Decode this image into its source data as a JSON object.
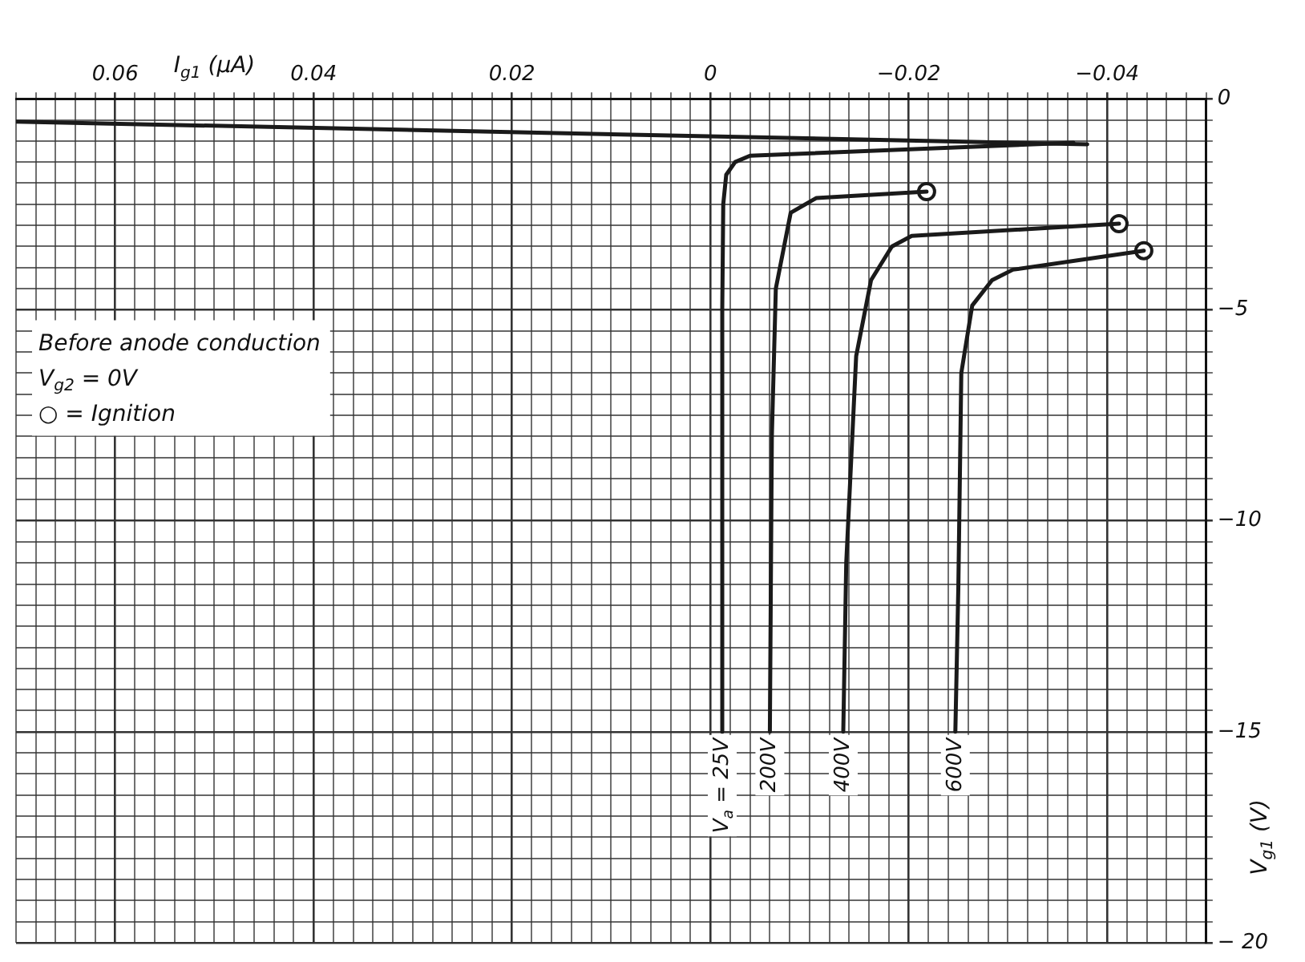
{
  "chart_data": {
    "type": "line",
    "xlabel": "I$_{g1}$ (μA)",
    "ylabel": "V$_{g1}$ (V)",
    "xlim": [
      0.07,
      -0.05
    ],
    "ylim": [
      -20,
      0
    ],
    "xticks": [
      {
        "value": 0.07,
        "label": null
      },
      {
        "value": 0.068,
        "label": null
      },
      {
        "value": 0.066,
        "label": null
      },
      {
        "value": 0.064,
        "label": null
      },
      {
        "value": 0.062,
        "label": null
      },
      0.06,
      {
        "value": 0.058,
        "label": null
      },
      {
        "value": 0.056,
        "label": null
      },
      {
        "value": 0.054,
        "label": null
      },
      {
        "value": 0.052,
        "label": null
      },
      {
        "value": 0.05,
        "label": null
      },
      {
        "value": 0.048,
        "label": null
      },
      {
        "value": 0.046,
        "label": null
      },
      {
        "value": 0.044,
        "label": null
      },
      {
        "value": 0.042,
        "label": null
      },
      0.04,
      {
        "value": 0.038,
        "label": null
      },
      {
        "value": 0.036,
        "label": null
      },
      {
        "value": 0.034,
        "label": null
      },
      {
        "value": 0.032,
        "label": null
      },
      {
        "value": 0.03,
        "label": null
      },
      {
        "value": 0.028,
        "label": null
      },
      {
        "value": 0.026,
        "label": null
      },
      {
        "value": 0.024,
        "label": null
      },
      {
        "value": 0.022,
        "label": null
      },
      0.02,
      {
        "value": 0.018,
        "label": null
      },
      {
        "value": 0.016,
        "label": null
      },
      {
        "value": 0.014,
        "label": null
      },
      {
        "value": 0.012,
        "label": null
      },
      {
        "value": 0.01,
        "label": null
      },
      {
        "value": 0.008,
        "label": null
      },
      {
        "value": 0.006,
        "label": null
      },
      {
        "value": 0.004,
        "label": null
      },
      {
        "value": 0.002,
        "label": null
      },
      0,
      {
        "value": -0.002,
        "label": null
      },
      {
        "value": -0.004,
        "label": null
      },
      {
        "value": -0.006,
        "label": null
      },
      {
        "value": -0.008,
        "label": null
      },
      {
        "value": -0.01,
        "label": null
      },
      {
        "value": -0.012,
        "label": null
      },
      {
        "value": -0.014,
        "label": null
      },
      {
        "value": -0.016,
        "label": null
      },
      {
        "value": -0.018,
        "label": null
      },
      {
        "value": -0.02,
        "label": "−0.02"
      },
      {
        "value": -0.022,
        "label": null
      },
      {
        "value": -0.024,
        "label": null
      },
      {
        "value": -0.026,
        "label": null
      },
      {
        "value": -0.028,
        "label": null
      },
      {
        "value": -0.03,
        "label": null
      },
      {
        "value": -0.032,
        "label": null
      },
      {
        "value": -0.034,
        "label": null
      },
      {
        "value": -0.036,
        "label": null
      },
      {
        "value": -0.038,
        "label": null
      },
      {
        "value": -0.04,
        "label": "−0.04"
      },
      {
        "value": -0.042,
        "label": null
      },
      {
        "value": -0.044,
        "label": null
      },
      {
        "value": -0.046,
        "label": null
      },
      {
        "value": -0.048,
        "label": null
      },
      {
        "value": -0.05,
        "label": null
      }
    ],
    "yticks": [
      0,
      {
        "value": -0.5,
        "label": null
      },
      {
        "value": -1,
        "label": null
      },
      {
        "value": -1.5,
        "label": null
      },
      {
        "value": -2,
        "label": null
      },
      {
        "value": -2.5,
        "label": null
      },
      {
        "value": -3,
        "label": null
      },
      {
        "value": -3.5,
        "label": null
      },
      {
        "value": -4,
        "label": null
      },
      {
        "value": -4.5,
        "label": null
      },
      {
        "value": -5,
        "label": "−5"
      },
      {
        "value": -5.5,
        "label": null
      },
      {
        "value": -6,
        "label": null
      },
      {
        "value": -6.5,
        "label": null
      },
      {
        "value": -7,
        "label": null
      },
      {
        "value": -7.5,
        "label": null
      },
      {
        "value": -8,
        "label": null
      },
      {
        "value": -8.5,
        "label": null
      },
      {
        "value": -9,
        "label": null
      },
      {
        "value": -9.5,
        "label": null
      },
      {
        "value": -10,
        "label": "−10"
      },
      {
        "value": -10.5,
        "label": null
      },
      {
        "value": -11,
        "label": null
      },
      {
        "value": -11.5,
        "label": null
      },
      {
        "value": -12,
        "label": null
      },
      {
        "value": -12.5,
        "label": null
      },
      {
        "value": -13,
        "label": null
      },
      {
        "value": -13.5,
        "label": null
      },
      {
        "value": -14,
        "label": null
      },
      {
        "value": -14.5,
        "label": null
      },
      {
        "value": -15,
        "label": "−15"
      },
      {
        "value": -15.5,
        "label": null
      },
      {
        "value": -16,
        "label": null
      },
      {
        "value": -16.5,
        "label": null
      },
      {
        "value": -17,
        "label": null
      },
      {
        "value": -17.5,
        "label": null
      },
      {
        "value": -18,
        "label": null
      },
      {
        "value": -18.5,
        "label": null
      },
      {
        "value": -19,
        "label": null
      },
      {
        "value": -19.5,
        "label": null
      },
      {
        "value": -20,
        "label": "− 20"
      }
    ],
    "grid": true,
    "legend": false,
    "line_style": "solid",
    "marker": "none",
    "annotations": [
      "Before anode conduction",
      "V$_{g2}$ = 0V",
      "○ = Ignition"
    ],
    "series": [
      {
        "color": "#1a1a1a",
        "x": [
          0.07,
          -0.038
        ],
        "values": [
          -0.54,
          -1.08
        ]
      },
      {
        "name": "V$_{a}$ = 25V",
        "color": "#1a1a1a",
        "x": [
          -0.0012,
          -0.0012,
          -0.0013,
          -0.0016,
          -0.0025,
          -0.004,
          -0.0366
        ],
        "values": [
          -15,
          -5,
          -2.5,
          -1.8,
          -1.5,
          -1.35,
          -1.04
        ]
      },
      {
        "name": "200V",
        "color": "#1a1a1a",
        "x": [
          -0.006,
          -0.0062,
          -0.0066,
          -0.0081,
          -0.0107,
          -0.0218
        ],
        "values": [
          -15,
          -8,
          -4.5,
          -2.7,
          -2.35,
          -2.2
        ]
      },
      {
        "name": "400V",
        "color": "#1a1a1a",
        "x": [
          -0.0134,
          -0.0137,
          -0.0147,
          -0.0162,
          -0.0183,
          -0.0203,
          -0.0412
        ],
        "values": [
          -15,
          -11,
          -6.1,
          -4.3,
          -3.5,
          -3.25,
          -2.96
        ]
      },
      {
        "name": "600V",
        "color": "#1a1a1a",
        "x": [
          -0.0247,
          -0.025,
          -0.0253,
          -0.0264,
          -0.0284,
          -0.0305,
          -0.0437
        ],
        "values": [
          -15,
          -11.6,
          -6.5,
          -4.9,
          -4.3,
          -4.05,
          -3.6
        ]
      },
      {
        "type": "scatter",
        "marker": "circle",
        "color": "#1a1a1a",
        "x": [
          -0.0218,
          -0.0412,
          -0.0437
        ],
        "values": [
          -2.2,
          -2.96,
          -3.6
        ]
      }
    ]
  }
}
